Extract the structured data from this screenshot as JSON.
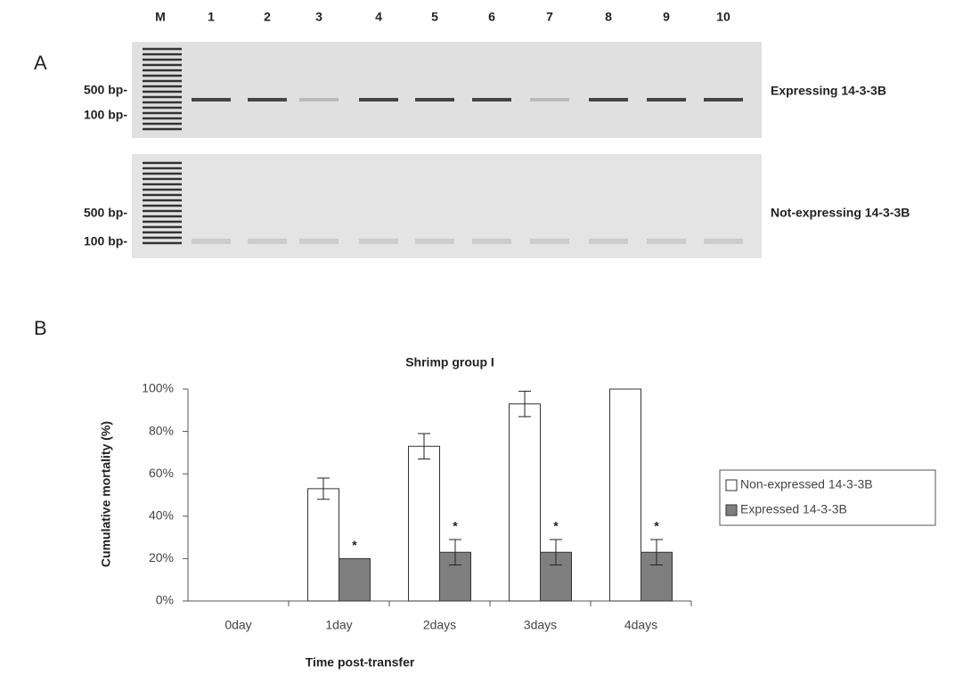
{
  "panel_a": {
    "label": "A",
    "lanes": [
      "M",
      "1",
      "2",
      "3",
      "4",
      "5",
      "6",
      "7",
      "8",
      "9",
      "10"
    ],
    "gels": [
      {
        "markers": [
          "500 bp-",
          "100 bp-"
        ],
        "label": "Expressing 14-3-3B"
      },
      {
        "markers": [
          "500 bp-",
          "100 bp-"
        ],
        "label": "Not-expressing 14-3-3B"
      }
    ]
  },
  "panel_b": {
    "label": "B"
  },
  "chart_data": {
    "type": "bar",
    "title": "Shrimp group I",
    "x_label": "Time post-transfer",
    "y_label": "Cumulative mortality (%)",
    "categories": [
      "0day",
      "1day",
      "2days",
      "3days",
      "4days"
    ],
    "series": [
      {
        "name": "Non-expressed 14-3-3B",
        "color": "#ffffff",
        "values": [
          0,
          53,
          73,
          93,
          100
        ],
        "errors": [
          null,
          5,
          6,
          6,
          null
        ]
      },
      {
        "name": "Expressed 14-3-3B",
        "color": "#7f7f7f",
        "values": [
          0,
          20,
          23,
          23,
          23
        ],
        "errors": [
          null,
          null,
          6,
          6,
          6
        ],
        "markers": [
          null,
          "*",
          "*",
          "*",
          "*"
        ]
      }
    ],
    "ylim": [
      0,
      100
    ],
    "yticks": [
      {
        "value": 0,
        "label": "0%"
      },
      {
        "value": 20,
        "label": "20%"
      },
      {
        "value": 40,
        "label": "40%"
      },
      {
        "value": 60,
        "label": "60%"
      },
      {
        "value": 80,
        "label": "80%"
      },
      {
        "value": 100,
        "label": "100%"
      }
    ],
    "legend": "right"
  }
}
